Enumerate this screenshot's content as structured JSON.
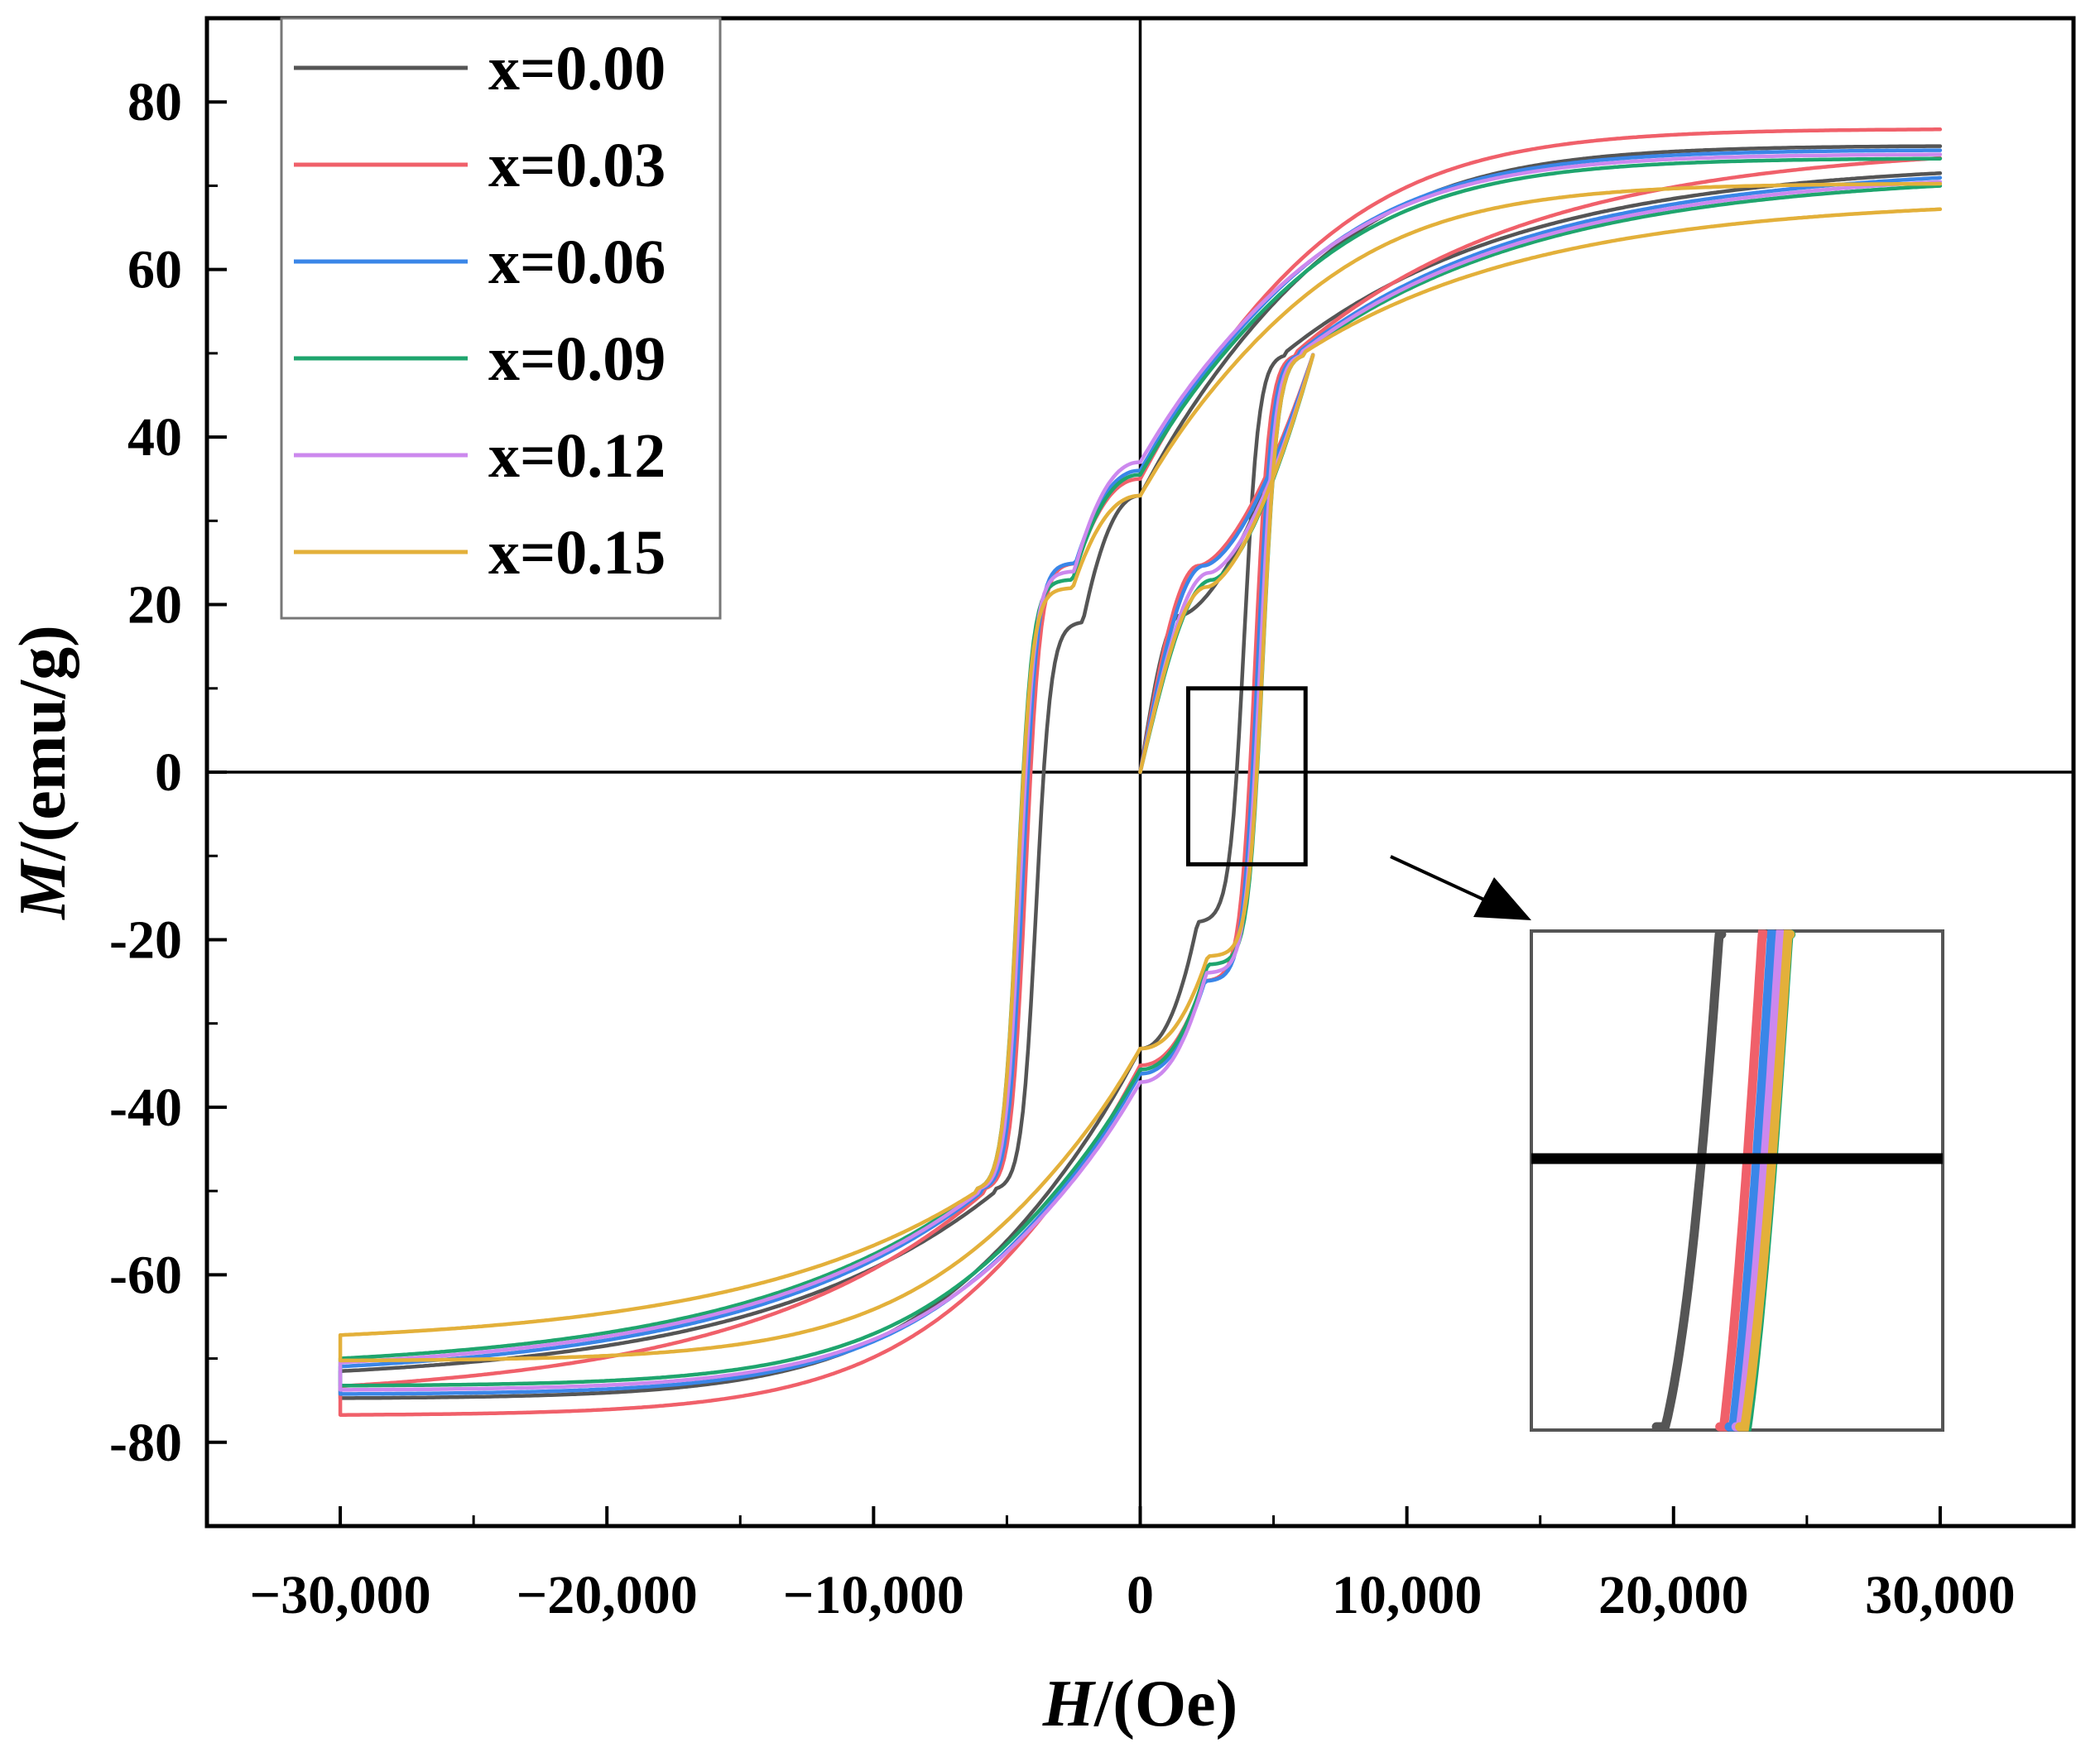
{
  "chart_data": {
    "type": "line",
    "title": "",
    "xlabel_italic": "H",
    "xlabel_rest": "/(Oe)",
    "ylabel_italic": "M",
    "ylabel_rest": "/(emu/g)",
    "xlim": [
      -35000,
      35000
    ],
    "ylim": [
      -90,
      90
    ],
    "x_ticks": [
      -30000,
      -20000,
      -10000,
      0,
      10000,
      20000,
      30000
    ],
    "x_tick_labels": [
      "−30,000",
      "−20,000",
      "−10,000",
      "0",
      "10,000",
      "20,000",
      "30,000"
    ],
    "y_ticks": [
      -80,
      -60,
      -40,
      -20,
      0,
      20,
      40,
      60,
      80
    ],
    "y_tick_labels": [
      "-80",
      "-60",
      "-40",
      "-20",
      "0",
      "20",
      "40",
      "60",
      "80"
    ],
    "legend_position": "top-left",
    "zoom_region": {
      "x": [
        1800,
        6200
      ],
      "y": [
        -11,
        10
      ]
    },
    "series": [
      {
        "name": "x=0.00",
        "color": "#555555",
        "Ms": 73,
        "Mr": 33,
        "Hc": 3900,
        "knee_H": 1500,
        "knee_M": 22
      },
      {
        "name": "x=0.03",
        "color": "#f0606a",
        "Ms": 75,
        "Mr": 35,
        "Hc": 4300,
        "knee_H": 2200,
        "knee_M": 29
      },
      {
        "name": "x=0.06",
        "color": "#3a86e8",
        "Ms": 72.5,
        "Mr": 36,
        "Hc": 4400,
        "knee_H": 2400,
        "knee_M": 29
      },
      {
        "name": "x=0.09",
        "color": "#1fa56e",
        "Ms": 71.5,
        "Mr": 35.5,
        "Hc": 4600,
        "knee_H": 2700,
        "knee_M": 27
      },
      {
        "name": "x=0.12",
        "color": "#cc88ee",
        "Ms": 72,
        "Mr": 37,
        "Hc": 4500,
        "knee_H": 2600,
        "knee_M": 28
      },
      {
        "name": "x=0.15",
        "color": "#e3b03a",
        "Ms": 68.5,
        "Mr": 33,
        "Hc": 4600,
        "knee_H": 2500,
        "knee_M": 26
      }
    ]
  }
}
